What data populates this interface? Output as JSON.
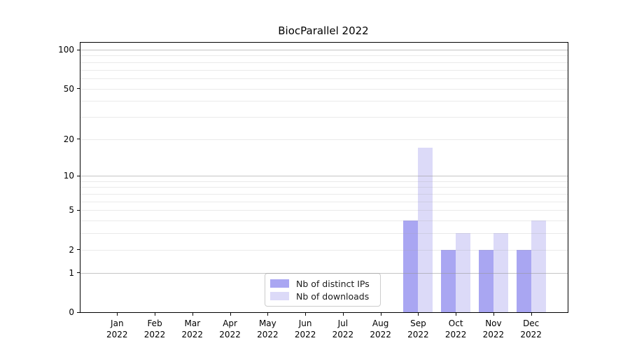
{
  "chart_data": {
    "type": "bar",
    "title": "BiocParallel 2022",
    "categories": [
      "Jan",
      "Feb",
      "Mar",
      "Apr",
      "May",
      "Jun",
      "Jul",
      "Aug",
      "Sep",
      "Oct",
      "Nov",
      "Dec"
    ],
    "x_sublabel": "2022",
    "series": [
      {
        "name": "Nb of distinct IPs",
        "color": "#a9a6f2",
        "values": [
          0,
          0,
          0,
          0,
          0,
          0,
          0,
          0,
          4,
          2,
          2,
          2
        ]
      },
      {
        "name": "Nb of downloads",
        "color": "#dcdaf8",
        "values": [
          0,
          0,
          0,
          0,
          0,
          0,
          0,
          0,
          17,
          3,
          3,
          4
        ]
      }
    ],
    "yscale": "log1p",
    "ymax": 100,
    "yticks": [
      0,
      1,
      2,
      5,
      10,
      20,
      50,
      100
    ],
    "grid": {
      "major": [
        1,
        10,
        100
      ],
      "minor": [
        2,
        3,
        4,
        5,
        6,
        7,
        8,
        9,
        20,
        30,
        40,
        50,
        60,
        70,
        80,
        90
      ]
    },
    "grid_on": true,
    "legend_position": "lower center",
    "colors": {
      "axis": "#000000",
      "text": "#000000",
      "grid_major": "rgba(150,150,150,0.55)",
      "grid_minor": "rgba(160,160,160,0.22)"
    }
  }
}
